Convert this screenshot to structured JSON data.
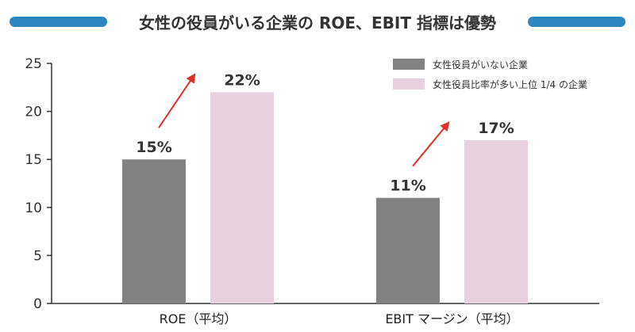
{
  "title": "女性の役員がいる企業の ROE、EBIT 指標は優勢",
  "colors": {
    "accent": "#2E86C1",
    "series_a": "#828282",
    "series_b": "#E8D0DF",
    "arrow": "#E0302A",
    "axis": "#333333"
  },
  "chart_data": {
    "type": "bar",
    "title": "女性の役員がいる企業の ROE、EBIT 指標は優勢",
    "categories": [
      "ROE（平均）",
      "EBIT マージン（平均）"
    ],
    "series": [
      {
        "name": "女性役員がいない企業",
        "values": [
          15,
          11
        ],
        "labels": [
          "15%",
          "11%"
        ]
      },
      {
        "name": "女性役員比率が多い上位 1/4 の企業",
        "values": [
          22,
          17
        ],
        "labels": [
          "22%",
          "17%"
        ]
      }
    ],
    "ylim": [
      0,
      25
    ],
    "yticks": [
      0,
      5,
      10,
      15,
      20,
      25
    ],
    "grid": false,
    "legend_position": "top-right",
    "annotations": [
      "red arrows pointing up from first series label toward second series bar in each group"
    ]
  }
}
